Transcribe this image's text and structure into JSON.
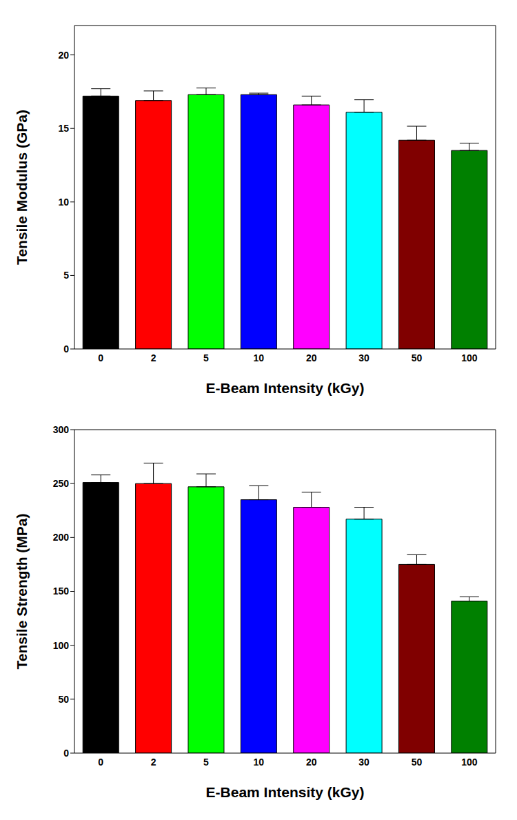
{
  "chart_data": [
    {
      "type": "bar",
      "x_label": "E-Beam Intensity (kGy)",
      "y_label": "Tensile Modulus (GPa)",
      "categories": [
        "0",
        "2",
        "5",
        "10",
        "20",
        "30",
        "50",
        "100"
      ],
      "values": [
        17.2,
        16.9,
        17.3,
        17.3,
        16.6,
        16.1,
        14.2,
        13.5
      ],
      "errors": [
        0.5,
        0.65,
        0.45,
        0.1,
        0.6,
        0.85,
        0.95,
        0.5
      ],
      "colors": [
        "#000000",
        "#ff0000",
        "#00ff00",
        "#0000ff",
        "#ff00ff",
        "#00ffff",
        "#800000",
        "#008000"
      ],
      "ylim": [
        0,
        22
      ],
      "yticks": [
        0,
        5,
        10,
        15,
        20
      ]
    },
    {
      "type": "bar",
      "x_label": "E-Beam Intensity (kGy)",
      "y_label": "Tensile Strength (MPa)",
      "categories": [
        "0",
        "2",
        "5",
        "10",
        "20",
        "30",
        "50",
        "100"
      ],
      "values": [
        251,
        250,
        247,
        235,
        228,
        217,
        175,
        141
      ],
      "errors": [
        7,
        19,
        12,
        13,
        14,
        11,
        9,
        4
      ],
      "colors": [
        "#000000",
        "#ff0000",
        "#00ff00",
        "#0000ff",
        "#ff00ff",
        "#00ffff",
        "#800000",
        "#008000"
      ],
      "ylim": [
        0,
        300
      ],
      "yticks": [
        0,
        50,
        100,
        150,
        200,
        250,
        300
      ]
    }
  ]
}
